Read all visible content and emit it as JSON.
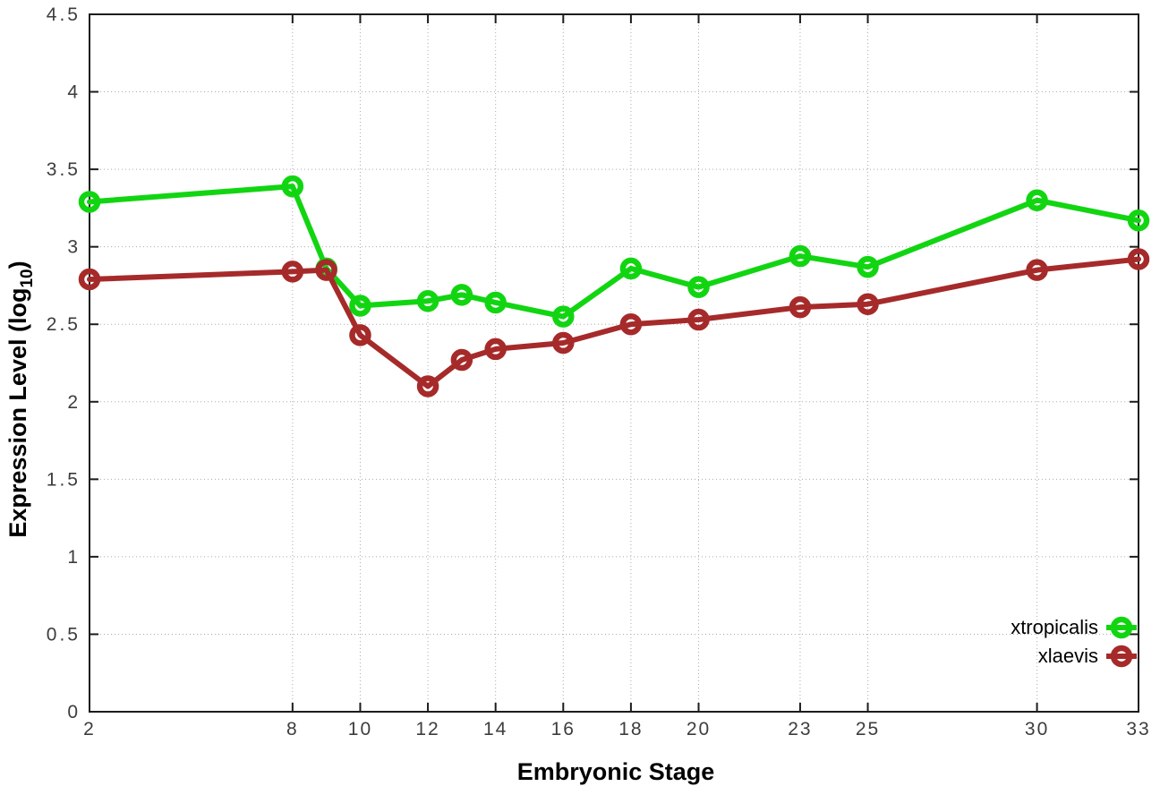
{
  "chart_data": {
    "type": "line",
    "title": "",
    "xlabel": "Embryonic Stage",
    "ylabel": "Expression Level (log10)",
    "ylabel_parts": {
      "main": "Expression Level (log",
      "sub": "10",
      "end": ")"
    },
    "x": [
      2,
      8,
      9,
      10,
      12,
      13,
      14,
      16,
      18,
      20,
      23,
      25,
      30,
      33
    ],
    "xticks": [
      "2",
      "8",
      "10",
      "12",
      "14",
      "16",
      "18",
      "20",
      "23",
      "25",
      "30",
      "33"
    ],
    "xtick_values": [
      2,
      8,
      10,
      12,
      14,
      16,
      18,
      20,
      23,
      25,
      30,
      33
    ],
    "yticks": [
      "0",
      "0.5",
      "1",
      "1.5",
      "2",
      "2.5",
      "3",
      "3.5",
      "4",
      "4.5"
    ],
    "ytick_values": [
      0,
      0.5,
      1,
      1.5,
      2,
      2.5,
      3,
      3.5,
      4,
      4.5
    ],
    "xlim": [
      2,
      33
    ],
    "ylim": [
      0,
      4.5
    ],
    "grid": true,
    "legend_position": "bottom-right-inside",
    "series": [
      {
        "name": "xtropicalis",
        "color": "#12d512",
        "values": [
          3.29,
          3.39,
          2.86,
          2.62,
          2.65,
          2.69,
          2.64,
          2.55,
          2.86,
          2.74,
          2.94,
          2.87,
          3.3,
          3.17
        ]
      },
      {
        "name": "xlaevis",
        "color": "#a62a2a",
        "values": [
          2.79,
          2.84,
          2.85,
          2.43,
          2.1,
          2.27,
          2.34,
          2.38,
          2.5,
          2.53,
          2.61,
          2.63,
          2.85,
          2.92
        ]
      }
    ],
    "style": {
      "frame_color": "#1c1c1c",
      "grid_color": "#ababab",
      "tick_color": "#1c1c1c",
      "line_width": 6,
      "marker_radius": 9,
      "marker_stroke": 6.5
    }
  }
}
